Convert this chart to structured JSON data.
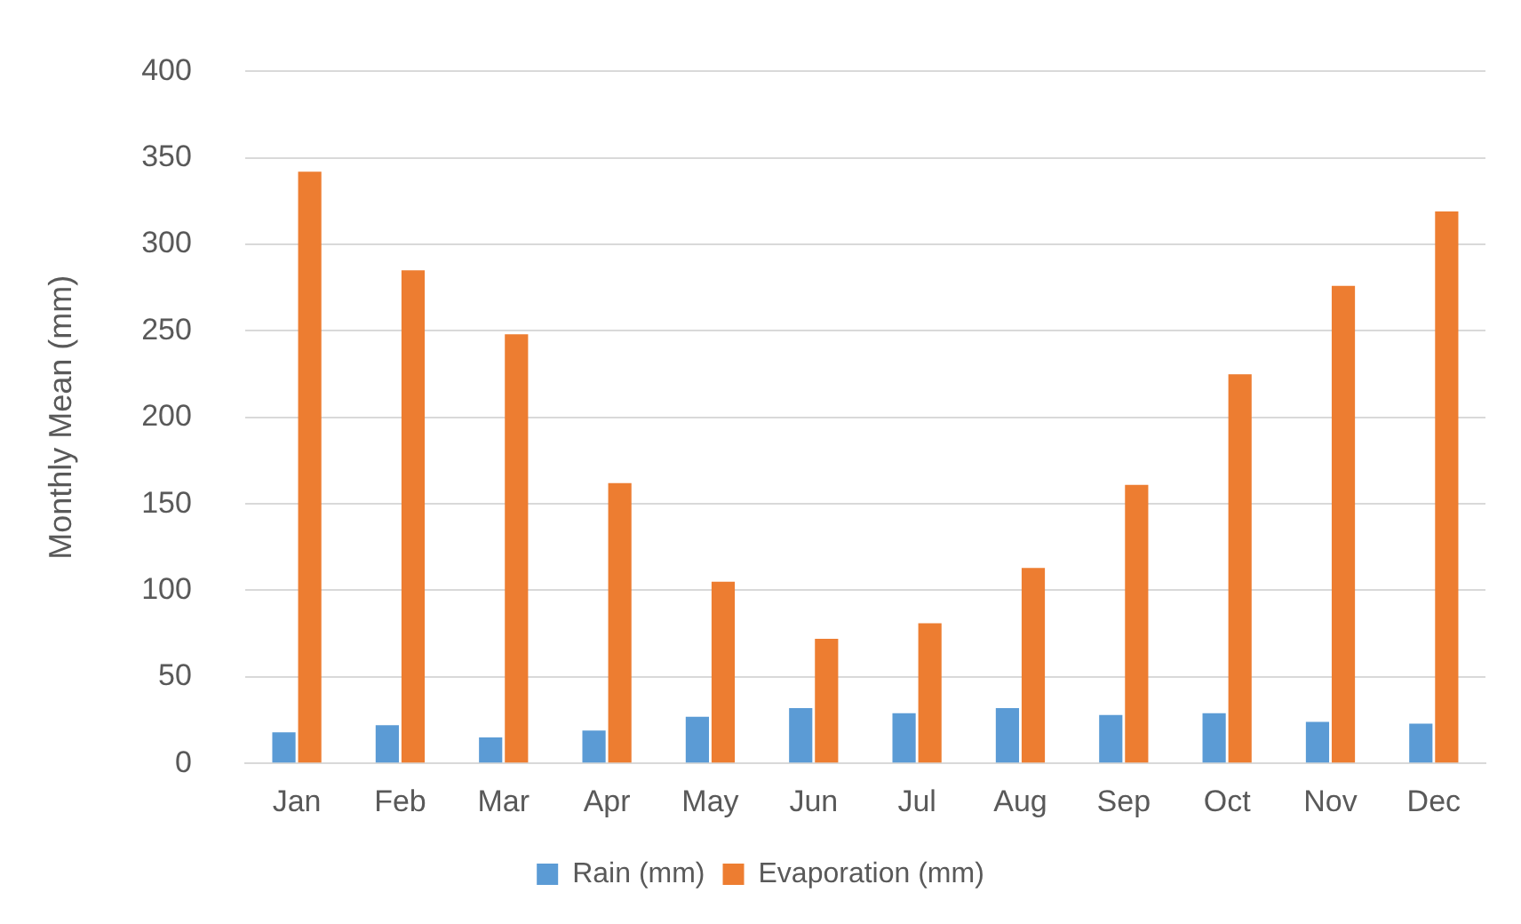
{
  "chart_data": {
    "type": "bar",
    "ylabel": "Monthly Mean (mm)",
    "categories": [
      "Jan",
      "Feb",
      "Mar",
      "Apr",
      "May",
      "Jun",
      "Jul",
      "Aug",
      "Sep",
      "Oct",
      "Nov",
      "Dec"
    ],
    "series": [
      {
        "name": "Rain (mm)",
        "color": "#5b9bd5",
        "values": [
          18,
          22,
          15,
          19,
          27,
          32,
          29,
          32,
          28,
          29,
          24,
          23
        ]
      },
      {
        "name": "Evaporation (mm)",
        "color": "#ed7d31",
        "values": [
          342,
          285,
          248,
          162,
          105,
          72,
          81,
          113,
          161,
          225,
          276,
          319
        ]
      }
    ],
    "ylim": [
      0,
      400
    ],
    "yticks": [
      0,
      50,
      100,
      150,
      200,
      250,
      300,
      350,
      400
    ],
    "grid": "y",
    "legend": "bottom"
  }
}
